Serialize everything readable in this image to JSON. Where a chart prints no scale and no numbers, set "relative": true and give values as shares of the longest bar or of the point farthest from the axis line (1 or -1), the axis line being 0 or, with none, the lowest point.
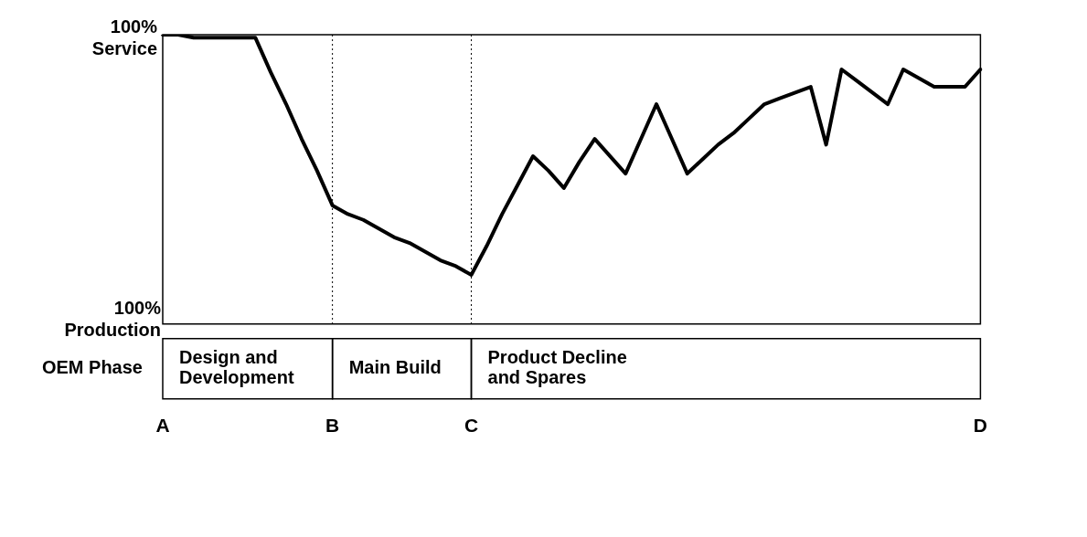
{
  "chart_data": {
    "type": "line",
    "relative": true,
    "categories": [
      "A",
      null,
      null,
      null,
      null,
      null,
      null,
      null,
      null,
      null,
      null,
      "B",
      null,
      null,
      null,
      null,
      null,
      null,
      null,
      null,
      "C",
      null,
      null,
      null,
      null,
      null,
      null,
      null,
      null,
      null,
      null,
      null,
      null,
      null,
      null,
      null,
      null,
      null,
      null,
      null,
      null,
      null,
      null,
      null,
      null,
      null,
      null,
      null,
      null,
      null,
      null,
      null,
      null,
      "D"
    ],
    "series": [
      {
        "color": "#000000",
        "values": [
          1,
          1,
          0.99,
          0.99,
          0.99,
          0.99,
          0.99,
          0.87,
          0.76,
          0.64,
          0.53,
          0.41,
          0.38,
          0.36,
          0.33,
          0.3,
          0.28,
          0.25,
          0.22,
          0.2,
          0.17,
          0.27,
          0.38,
          0.48,
          0.58,
          0.53,
          0.47,
          0.56,
          0.64,
          0.58,
          0.52,
          0.64,
          0.76,
          0.64,
          0.52,
          0.57,
          0.62,
          0.66,
          0.71,
          0.76,
          0.78,
          0.8,
          0.82,
          0.62,
          0.88,
          0.84,
          0.8,
          0.76,
          0.88,
          0.85,
          0.82,
          0.82,
          0.82,
          0.88
        ]
      }
    ],
    "ref_lines": [
      {
        "axis": "x",
        "value": "B",
        "line_style": "dotted"
      },
      {
        "axis": "x",
        "value": "C",
        "line_style": "dotted"
      }
    ],
    "annotations": [
      "100% Service",
      "100% Production",
      "OEM Phase",
      "Design and Development",
      "Main Build",
      "Product Decline and Spares"
    ],
    "grid": false,
    "legend": false,
    "marker": "none",
    "line_style": "solid"
  }
}
